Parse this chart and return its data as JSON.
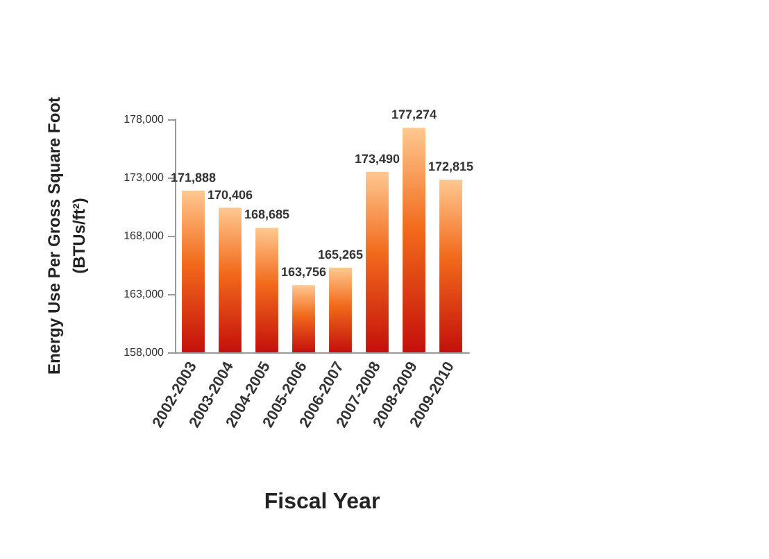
{
  "chart_data": {
    "type": "bar",
    "xlabel": "Fiscal Year",
    "ylabel": "Energy Use Per Gross Square Foot\n(BTUs/ft²)",
    "categories": [
      "2002-2003",
      "2003-2004",
      "2004-2005",
      "2005-2006",
      "2006-2007",
      "2007-2008",
      "2008-2009",
      "2009-2010"
    ],
    "values": [
      171888,
      170406,
      168685,
      163756,
      165265,
      173490,
      177274,
      172815
    ],
    "value_labels": [
      "171,888",
      "170,406",
      "168,685",
      "163,756",
      "165,265",
      "173,490",
      "177,274",
      "172,815"
    ],
    "color": "#f26a1b",
    "ylim": [
      158000,
      178000
    ],
    "yticks": [
      {
        "value": 158000,
        "label": "158,000"
      },
      {
        "value": 163000,
        "label": "163,000"
      },
      {
        "value": 168000,
        "label": "168,000"
      },
      {
        "value": 173000,
        "label": "173,000"
      },
      {
        "value": 178000,
        "label": "178,000"
      }
    ],
    "grid": false
  }
}
